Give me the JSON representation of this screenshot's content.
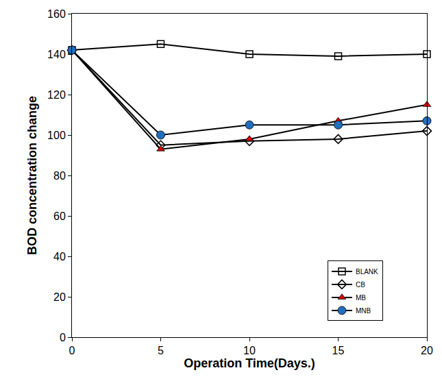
{
  "chart_data": {
    "type": "line",
    "x_label": "Operation Time(Days.)",
    "y_label": "BOD concentration change",
    "x": [
      0,
      5,
      10,
      15,
      20
    ],
    "series": [
      {
        "name": "BLANK",
        "color": "#000000",
        "marker": "square-open",
        "values": [
          142,
          145,
          140,
          139,
          140
        ]
      },
      {
        "name": "CB",
        "color": "#000000",
        "marker": "diamond-open",
        "values": [
          142,
          95,
          97,
          98,
          102
        ]
      },
      {
        "name": "MB",
        "color": "#e00000",
        "marker": "triangle-up",
        "values": [
          142,
          93,
          98,
          107,
          115
        ]
      },
      {
        "name": "MNB",
        "color": "#1f6fc0",
        "marker": "circle",
        "values": [
          142,
          100,
          105,
          105,
          107
        ]
      }
    ],
    "xlim": [
      0,
      20
    ],
    "xticks": [
      0,
      5,
      10,
      15,
      20
    ],
    "ylim": [
      0,
      160
    ],
    "yticks": [
      0,
      20,
      40,
      60,
      80,
      100,
      120,
      140,
      160
    ],
    "grid": false,
    "legend": "lower right"
  }
}
